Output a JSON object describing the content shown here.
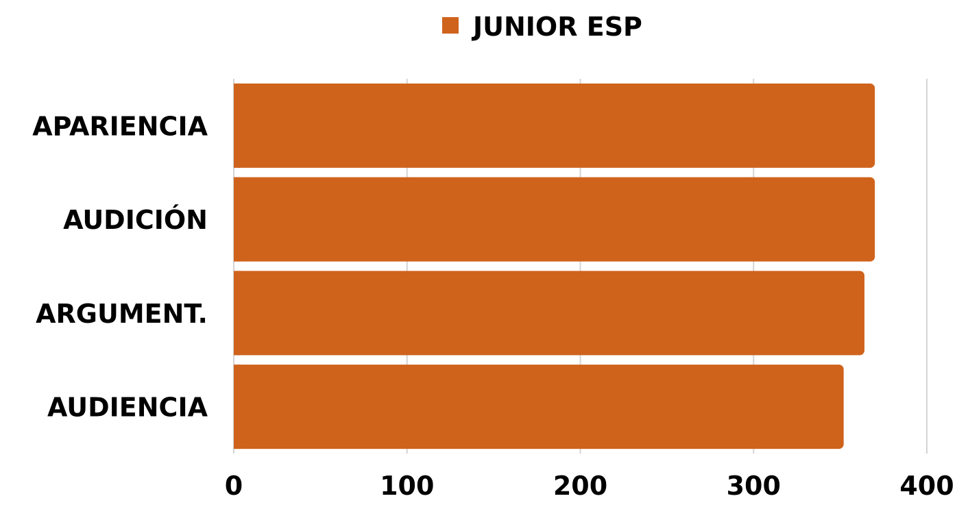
{
  "chart_data": {
    "type": "bar",
    "orientation": "horizontal",
    "categories": [
      "APARIENCIA",
      "AUDICIÓN",
      "ARGUMENT.",
      "AUDIENCIA"
    ],
    "series": [
      {
        "name": "JUNIOR ESP",
        "values": [
          370,
          370,
          364,
          352
        ],
        "color": "#cf631c"
      }
    ],
    "xlim": [
      0,
      400
    ],
    "xticks": [
      "0",
      "100",
      "200",
      "300",
      "400"
    ],
    "xlabel": "",
    "ylabel": "",
    "title": "",
    "grid": "vertical",
    "legend_position": "top-center"
  }
}
